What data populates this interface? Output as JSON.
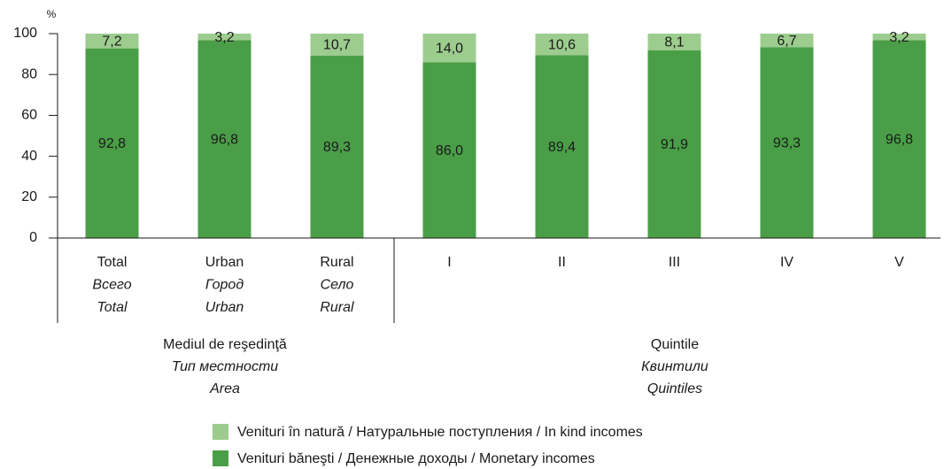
{
  "chart_data": {
    "type": "bar",
    "stacked": true,
    "y_unit": "%",
    "categories": [
      [
        "Total",
        "Всего",
        "Total"
      ],
      [
        "Urban",
        "Город",
        "Urban"
      ],
      [
        "Rural",
        "Село",
        "Rural"
      ],
      [
        "I"
      ],
      [
        "II"
      ],
      [
        "III"
      ],
      [
        "IV"
      ],
      [
        "V"
      ]
    ],
    "groups": [
      [
        "Mediul de reşedinţă",
        "Тип местности",
        "Area"
      ],
      [
        "Quintile",
        "Квинтили",
        "Quintiles"
      ]
    ],
    "series": [
      {
        "name": "Venituri băneşti / Денежные доходы / Monetary incomes",
        "color": "#4a9e47",
        "values": [
          92.8,
          96.8,
          89.3,
          86.0,
          89.4,
          91.9,
          93.3,
          96.8
        ],
        "value_labels": [
          "92,8",
          "96,8",
          "89,3",
          "86,0",
          "89,4",
          "91,9",
          "93,3",
          "96,8"
        ]
      },
      {
        "name": "Venituri în natură / Натуральные поступления / In kind incomes",
        "color": "#9ccc8e",
        "values": [
          7.2,
          3.2,
          10.7,
          14.0,
          10.6,
          8.1,
          6.7,
          3.2
        ],
        "value_labels": [
          "7,2",
          "3,2",
          "10,7",
          "14,0",
          "10,6",
          "8,1",
          "6,7",
          "3,2"
        ]
      }
    ],
    "ylim": [
      0,
      100
    ],
    "yticks": [
      0,
      20,
      40,
      60,
      80,
      100
    ]
  }
}
